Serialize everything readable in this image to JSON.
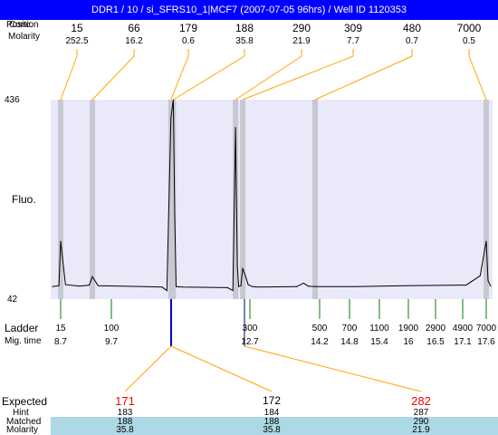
{
  "title": "DDR1 / 10 / si_SFRS10_1|MCF7 (2007-07-05 96hrs) / Well ID 1120353",
  "top_table": {
    "row1_label": "Position",
    "row1_overlap_label": "Conc.",
    "row2_label": "Molarity",
    "peaks": [
      {
        "size": "15",
        "molarity": "252.5"
      },
      {
        "size": "66",
        "molarity": "16.2"
      },
      {
        "size": "179",
        "molarity": "0.6"
      },
      {
        "size": "188",
        "molarity": "35.8"
      },
      {
        "size": "290",
        "molarity": "21.9"
      },
      {
        "size": "309",
        "molarity": "7.7"
      },
      {
        "size": "480",
        "molarity": "0.7"
      },
      {
        "size": "7000",
        "molarity": "0.5"
      }
    ]
  },
  "ladder": {
    "label": "Ladder",
    "mig_label": "Mig. time",
    "items": [
      {
        "bp": "15",
        "mig": "8.7"
      },
      {
        "bp": "100",
        "mig": "9.7"
      },
      {
        "bp": "300",
        "mig": "12.7"
      },
      {
        "bp": "500",
        "mig": "14.2"
      },
      {
        "bp": "700",
        "mig": "14.8"
      },
      {
        "bp": "1100",
        "mig": "15.4"
      },
      {
        "bp": "1900",
        "mig": "16"
      },
      {
        "bp": "2900",
        "mig": "16.5"
      },
      {
        "bp": "4900",
        "mig": "17.1"
      },
      {
        "bp": "7000",
        "mig": "17.6"
      }
    ]
  },
  "bottom_table": {
    "expected_label": "Expected",
    "hint_label": "Hint",
    "matched_label": "Matched",
    "molarity_label": "Molarity",
    "columns": [
      {
        "expected": "171",
        "hint": "183",
        "matched": "188",
        "molarity": "35.8"
      },
      {
        "expected": "172",
        "hint": "184",
        "matched": "188",
        "molarity": "35.8"
      },
      {
        "expected": "282",
        "hint": "287",
        "matched": "290",
        "molarity": "21.9"
      }
    ]
  },
  "colors": {
    "title_bg": "#0000ff",
    "plot_bg": "#e9e9fa",
    "connector": "#ffa500",
    "ladder_tick": "#008000",
    "marker": "#0000cc",
    "highlight_row": "#add8e6",
    "peak_band": "#c8c8d2",
    "expected_red": "#ff0000"
  },
  "chart_data": {
    "type": "line",
    "title": "",
    "xlabel": "Mig. time",
    "ylabel": "Fluo.",
    "ylim": [
      42,
      436
    ],
    "ytick_labels": [
      "436",
      "42"
    ],
    "x": [
      8.0,
      8.55,
      8.7,
      8.85,
      9.3,
      9.6,
      9.7,
      9.8,
      10.6,
      10.9,
      10.98,
      11.05,
      11.09,
      11.12,
      11.15,
      11.3,
      12.3,
      12.42,
      12.48,
      12.52,
      12.55,
      12.6,
      12.64,
      12.7,
      12.76,
      12.85,
      13.0,
      13.8,
      13.95,
      14.05,
      14.2,
      15.0,
      16.0,
      17.2,
      17.48,
      17.6,
      17.72,
      17.9
    ],
    "series": [
      {
        "values": [
          58,
          60,
          150,
          62,
          59,
          61,
          78,
          60,
          58,
          57,
          50,
          400,
          436,
          200,
          58,
          57,
          56,
          50,
          380,
          100,
          58,
          60,
          95,
          80,
          62,
          58,
          57,
          58,
          65,
          59,
          58,
          58,
          60,
          61,
          80,
          150,
          70,
          59
        ]
      }
    ],
    "grid": false
  }
}
